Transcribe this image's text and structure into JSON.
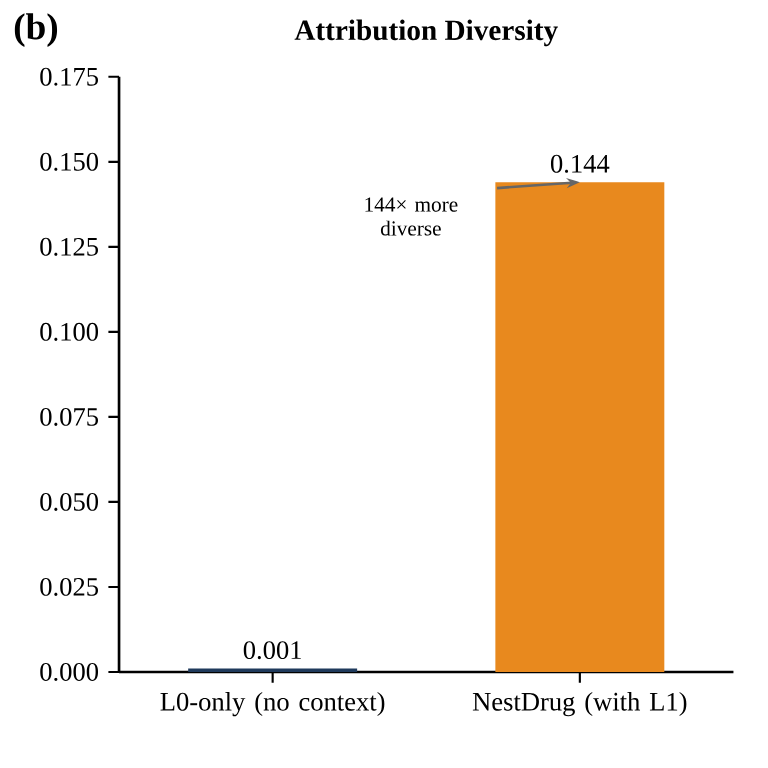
{
  "chart_data": {
    "type": "bar",
    "title": "Attribution Diversity",
    "categories": [
      "L0-only (no context)",
      "NestDrug (with L1)"
    ],
    "values": [
      0.001,
      0.144
    ],
    "colors": [
      "#1f3a5c",
      "#e8891e"
    ],
    "ylim": [
      0,
      0.175
    ],
    "yticks": [
      {
        "value": 0,
        "label": "0.000"
      },
      {
        "value": 0.025,
        "label": "0.025"
      },
      {
        "value": 0.05,
        "label": "0.050"
      },
      {
        "value": 0.075,
        "label": "0.075"
      },
      {
        "value": 0.1,
        "label": "0.100"
      },
      {
        "value": 0.125,
        "label": "0.125"
      },
      {
        "value": 0.15,
        "label": "0.150"
      },
      {
        "value": 0.175,
        "label": "0.175"
      }
    ],
    "data_labels": true,
    "grid": false,
    "annotations": [
      "(b)",
      "144× more diverse"
    ]
  }
}
